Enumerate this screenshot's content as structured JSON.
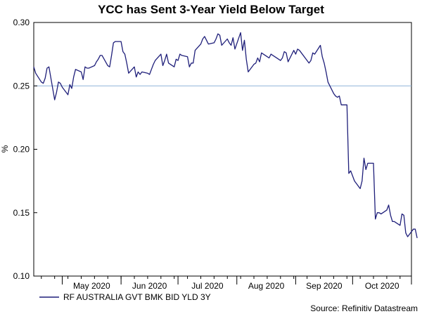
{
  "chart_data": {
    "type": "line",
    "title": "YCC has Sent 3-Year Yield Below Target",
    "ylabel": "%",
    "xlabel": "",
    "source": "Source: Refinitiv Datastream",
    "ylim": [
      0.1,
      0.3
    ],
    "yticks": [
      "0.10",
      "0.15",
      "0.20",
      "0.25",
      "0.30"
    ],
    "xlim": [
      "2020-04-16",
      "2020-11-01"
    ],
    "xtick_labels": [
      {
        "label": "May 2020",
        "date": "2020-05-01"
      },
      {
        "label": "Jun 2020",
        "date": "2020-06-01"
      },
      {
        "label": "Jul 2020",
        "date": "2020-07-01"
      },
      {
        "label": "Aug 2020",
        "date": "2020-08-01"
      },
      {
        "label": "Sep 2020",
        "date": "2020-09-01"
      },
      {
        "label": "Oct 2020",
        "date": "2020-10-01"
      }
    ],
    "reference_line": {
      "y": 0.25,
      "color": "#8fb3d9"
    },
    "legend_position": "bottom-left",
    "grid": false,
    "series": [
      {
        "name": "RF AUSTRALIA GVT BMK BID YLD 3Y",
        "color": "#1f1f7a",
        "points": [
          [
            "2020-04-16",
            0.265
          ],
          [
            "2020-04-17",
            0.26
          ],
          [
            "2020-04-20",
            0.253
          ],
          [
            "2020-04-21",
            0.252
          ],
          [
            "2020-04-22",
            0.256
          ],
          [
            "2020-04-23",
            0.264
          ],
          [
            "2020-04-24",
            0.265
          ],
          [
            "2020-04-27",
            0.239
          ],
          [
            "2020-04-28",
            0.245
          ],
          [
            "2020-04-29",
            0.253
          ],
          [
            "2020-04-30",
            0.252
          ],
          [
            "2020-05-01",
            0.249
          ],
          [
            "2020-05-04",
            0.243
          ],
          [
            "2020-05-05",
            0.251
          ],
          [
            "2020-05-06",
            0.248
          ],
          [
            "2020-05-07",
            0.257
          ],
          [
            "2020-05-08",
            0.263
          ],
          [
            "2020-05-11",
            0.261
          ],
          [
            "2020-05-12",
            0.255
          ],
          [
            "2020-05-13",
            0.265
          ],
          [
            "2020-05-14",
            0.264
          ],
          [
            "2020-05-15",
            0.264
          ],
          [
            "2020-05-18",
            0.266
          ],
          [
            "2020-05-19",
            0.269
          ],
          [
            "2020-05-20",
            0.271
          ],
          [
            "2020-05-21",
            0.274
          ],
          [
            "2020-05-22",
            0.274
          ],
          [
            "2020-05-25",
            0.266
          ],
          [
            "2020-05-26",
            0.265
          ],
          [
            "2020-05-27",
            0.274
          ],
          [
            "2020-05-28",
            0.284
          ],
          [
            "2020-05-29",
            0.285
          ],
          [
            "2020-06-01",
            0.285
          ],
          [
            "2020-06-02",
            0.277
          ],
          [
            "2020-06-03",
            0.275
          ],
          [
            "2020-06-04",
            0.268
          ],
          [
            "2020-06-05",
            0.26
          ],
          [
            "2020-06-08",
            0.265
          ],
          [
            "2020-06-09",
            0.257
          ],
          [
            "2020-06-10",
            0.261
          ],
          [
            "2020-06-11",
            0.259
          ],
          [
            "2020-06-12",
            0.261
          ],
          [
            "2020-06-15",
            0.26
          ],
          [
            "2020-06-16",
            0.259
          ],
          [
            "2020-06-17",
            0.263
          ],
          [
            "2020-06-18",
            0.267
          ],
          [
            "2020-06-19",
            0.27
          ],
          [
            "2020-06-22",
            0.275
          ],
          [
            "2020-06-23",
            0.266
          ],
          [
            "2020-06-24",
            0.27
          ],
          [
            "2020-06-25",
            0.275
          ],
          [
            "2020-06-26",
            0.268
          ],
          [
            "2020-06-29",
            0.265
          ],
          [
            "2020-06-30",
            0.271
          ],
          [
            "2020-07-01",
            0.27
          ],
          [
            "2020-07-02",
            0.275
          ],
          [
            "2020-07-03",
            0.274
          ],
          [
            "2020-07-06",
            0.273
          ],
          [
            "2020-07-07",
            0.265
          ],
          [
            "2020-07-08",
            0.268
          ],
          [
            "2020-07-09",
            0.268
          ],
          [
            "2020-07-10",
            0.278
          ],
          [
            "2020-07-13",
            0.283
          ],
          [
            "2020-07-14",
            0.287
          ],
          [
            "2020-07-15",
            0.289
          ],
          [
            "2020-07-16",
            0.286
          ],
          [
            "2020-07-17",
            0.283
          ],
          [
            "2020-07-20",
            0.284
          ],
          [
            "2020-07-21",
            0.287
          ],
          [
            "2020-07-22",
            0.291
          ],
          [
            "2020-07-23",
            0.29
          ],
          [
            "2020-07-24",
            0.282
          ],
          [
            "2020-07-27",
            0.287
          ],
          [
            "2020-07-28",
            0.284
          ],
          [
            "2020-07-29",
            0.282
          ],
          [
            "2020-07-30",
            0.288
          ],
          [
            "2020-07-31",
            0.279
          ],
          [
            "2020-08-03",
            0.292
          ],
          [
            "2020-08-04",
            0.278
          ],
          [
            "2020-08-05",
            0.286
          ],
          [
            "2020-08-06",
            0.271
          ],
          [
            "2020-08-07",
            0.261
          ],
          [
            "2020-08-10",
            0.267
          ],
          [
            "2020-08-11",
            0.268
          ],
          [
            "2020-08-12",
            0.272
          ],
          [
            "2020-08-13",
            0.269
          ],
          [
            "2020-08-14",
            0.276
          ],
          [
            "2020-08-17",
            0.273
          ],
          [
            "2020-08-18",
            0.272
          ],
          [
            "2020-08-19",
            0.275
          ],
          [
            "2020-08-20",
            0.274
          ],
          [
            "2020-08-21",
            0.273
          ],
          [
            "2020-08-24",
            0.27
          ],
          [
            "2020-08-25",
            0.272
          ],
          [
            "2020-08-26",
            0.277
          ],
          [
            "2020-08-27",
            0.276
          ],
          [
            "2020-08-28",
            0.269
          ],
          [
            "2020-08-31",
            0.278
          ],
          [
            "2020-09-01",
            0.275
          ],
          [
            "2020-09-02",
            0.279
          ],
          [
            "2020-09-03",
            0.278
          ],
          [
            "2020-09-04",
            0.276
          ],
          [
            "2020-09-07",
            0.27
          ],
          [
            "2020-09-08",
            0.268
          ],
          [
            "2020-09-09",
            0.27
          ],
          [
            "2020-09-10",
            0.276
          ],
          [
            "2020-09-11",
            0.275
          ],
          [
            "2020-09-14",
            0.282
          ],
          [
            "2020-09-15",
            0.273
          ],
          [
            "2020-09-16",
            0.268
          ],
          [
            "2020-09-17",
            0.261
          ],
          [
            "2020-09-18",
            0.253
          ],
          [
            "2020-09-21",
            0.244
          ],
          [
            "2020-09-22",
            0.242
          ],
          [
            "2020-09-23",
            0.241
          ],
          [
            "2020-09-24",
            0.242
          ],
          [
            "2020-09-25",
            0.235
          ],
          [
            "2020-09-28",
            0.235
          ],
          [
            "2020-09-29",
            0.181
          ],
          [
            "2020-09-30",
            0.183
          ],
          [
            "2020-10-01",
            0.179
          ],
          [
            "2020-10-02",
            0.175
          ],
          [
            "2020-10-05",
            0.169
          ],
          [
            "2020-10-06",
            0.175
          ],
          [
            "2020-10-07",
            0.193
          ],
          [
            "2020-10-08",
            0.184
          ],
          [
            "2020-10-09",
            0.189
          ],
          [
            "2020-10-12",
            0.189
          ],
          [
            "2020-10-13",
            0.145
          ],
          [
            "2020-10-14",
            0.15
          ],
          [
            "2020-10-15",
            0.15
          ],
          [
            "2020-10-16",
            0.149
          ],
          [
            "2020-10-19",
            0.152
          ],
          [
            "2020-10-20",
            0.156
          ],
          [
            "2020-10-21",
            0.148
          ],
          [
            "2020-10-22",
            0.143
          ],
          [
            "2020-10-23",
            0.143
          ],
          [
            "2020-10-26",
            0.14
          ],
          [
            "2020-10-27",
            0.149
          ],
          [
            "2020-10-28",
            0.148
          ],
          [
            "2020-10-29",
            0.134
          ],
          [
            "2020-10-30",
            0.131
          ],
          [
            "2020-11-02",
            0.137
          ],
          [
            "2020-11-03",
            0.137
          ],
          [
            "2020-11-04",
            0.13
          ]
        ]
      }
    ]
  }
}
